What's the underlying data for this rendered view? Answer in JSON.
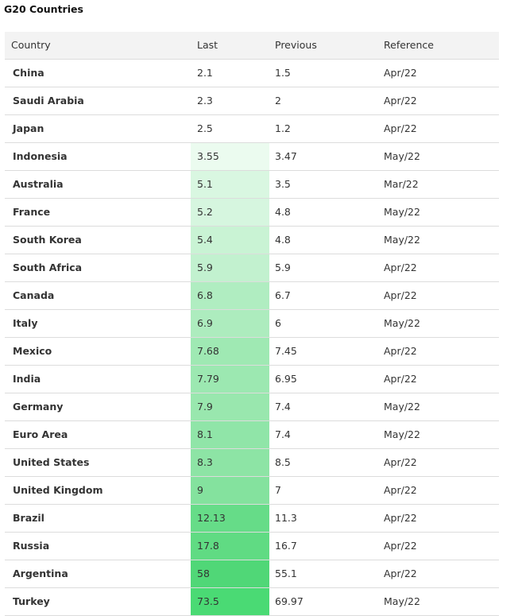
{
  "title": "G20 Countries",
  "headers": {
    "country": "Country",
    "last": "Last",
    "previous": "Previous",
    "reference": "Reference"
  },
  "colors": {
    "highlight_none": "#ffffff",
    "highlight_max": "#4ada74"
  },
  "rows": [
    {
      "country": "China",
      "last": "2.1",
      "previous": "1.5",
      "reference": "Apr/22",
      "highlight": "#ffffff"
    },
    {
      "country": "Saudi Arabia",
      "last": "2.3",
      "previous": "2",
      "reference": "Apr/22",
      "highlight": "#ffffff"
    },
    {
      "country": "Japan",
      "last": "2.5",
      "previous": "1.2",
      "reference": "Apr/22",
      "highlight": "#ffffff"
    },
    {
      "country": "Indonesia",
      "last": "3.55",
      "previous": "3.47",
      "reference": "May/22",
      "highlight": "#ebfbef"
    },
    {
      "country": "Australia",
      "last": "5.1",
      "previous": "3.5",
      "reference": "Mar/22",
      "highlight": "#d9f7e1"
    },
    {
      "country": "France",
      "last": "5.2",
      "previous": "4.8",
      "reference": "May/22",
      "highlight": "#d6f6df"
    },
    {
      "country": "South Korea",
      "last": "5.4",
      "previous": "4.8",
      "reference": "May/22",
      "highlight": "#c9f3d4"
    },
    {
      "country": "South Africa",
      "last": "5.9",
      "previous": "5.9",
      "reference": "Apr/22",
      "highlight": "#c2f1cf"
    },
    {
      "country": "Canada",
      "last": "6.8",
      "previous": "6.7",
      "reference": "Apr/22",
      "highlight": "#b0edc1"
    },
    {
      "country": "Italy",
      "last": "6.9",
      "previous": "6",
      "reference": "May/22",
      "highlight": "#adecbe"
    },
    {
      "country": "Mexico",
      "last": "7.68",
      "previous": "7.45",
      "reference": "Apr/22",
      "highlight": "#9fe9b3"
    },
    {
      "country": "India",
      "last": "7.79",
      "previous": "6.95",
      "reference": "Apr/22",
      "highlight": "#9ce8b1"
    },
    {
      "country": "Germany",
      "last": "7.9",
      "previous": "7.4",
      "reference": "May/22",
      "highlight": "#99e7ae"
    },
    {
      "country": "Euro Area",
      "last": "8.1",
      "previous": "7.4",
      "reference": "May/22",
      "highlight": "#90e5a8"
    },
    {
      "country": "United States",
      "last": "8.3",
      "previous": "8.5",
      "reference": "Apr/22",
      "highlight": "#8de4a5"
    },
    {
      "country": "United Kingdom",
      "last": "9",
      "previous": "7",
      "reference": "Apr/22",
      "highlight": "#84e29e"
    },
    {
      "country": "Brazil",
      "last": "12.13",
      "previous": "11.3",
      "reference": "Apr/22",
      "highlight": "#66dc88"
    },
    {
      "country": "Russia",
      "last": "17.8",
      "previous": "16.7",
      "reference": "Apr/22",
      "highlight": "#60db83"
    },
    {
      "country": "Argentina",
      "last": "58",
      "previous": "55.1",
      "reference": "Apr/22",
      "highlight": "#50d777"
    },
    {
      "country": "Turkey",
      "last": "73.5",
      "previous": "69.97",
      "reference": "May/22",
      "highlight": "#4ada74"
    }
  ]
}
